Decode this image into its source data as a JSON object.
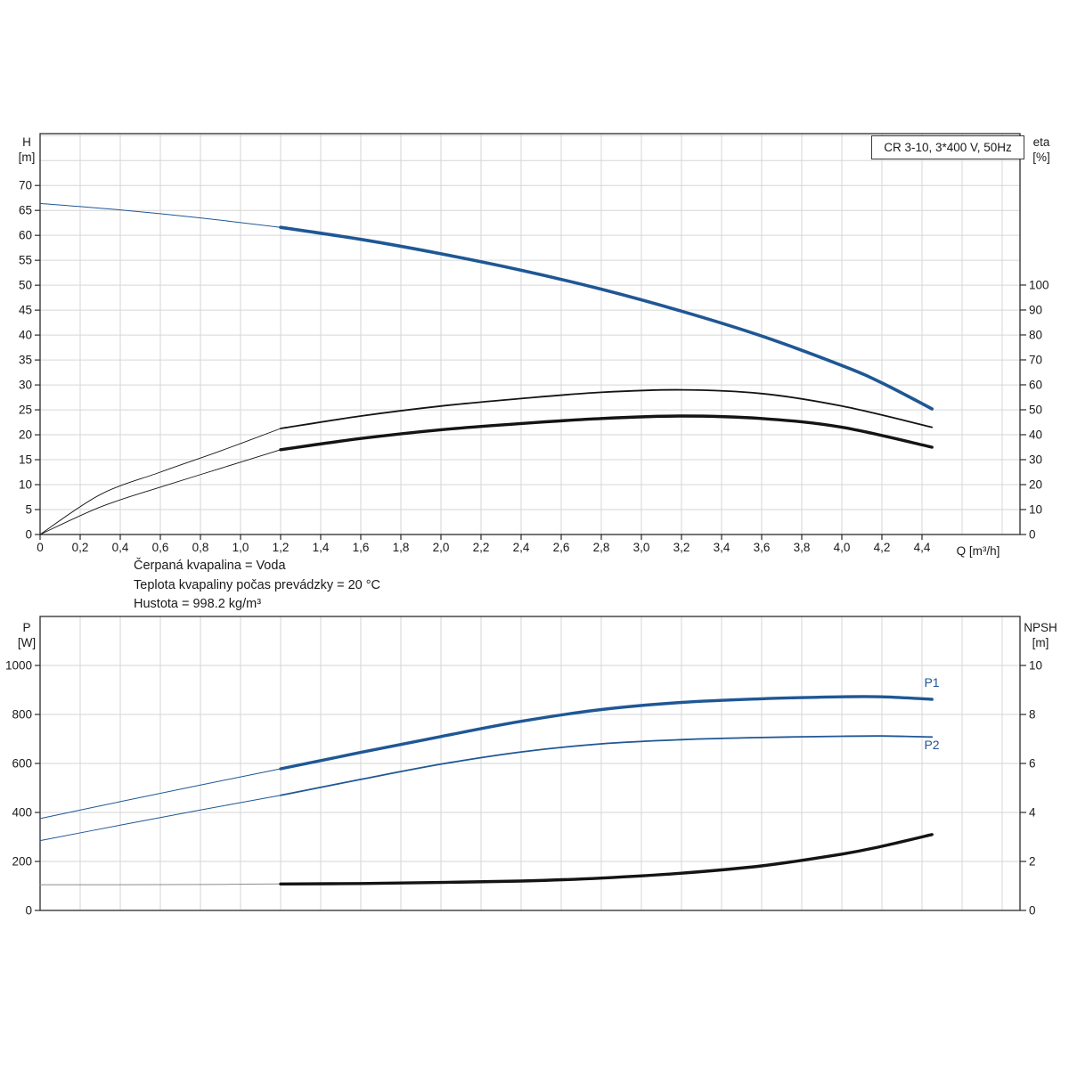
{
  "page": {
    "background": "#ffffff"
  },
  "colors": {
    "curve_blue": "#1f5795",
    "curve_black": "#141414",
    "npsh_thin": "#8c8c8c",
    "grid": "#d6d6d6",
    "axis": "#2b2b2b",
    "text": "#1a1a1a"
  },
  "title_box": {
    "label": "CR 3-10, 3*400 V, 50Hz"
  },
  "notes": {
    "line1": "Čerpaná kvapalina = Voda",
    "line2": "Teplota kvapaliny počas prevádzky = 20 °C",
    "line3": "Hustota = 998.2 kg/m³"
  },
  "chart_data": [
    {
      "type": "line",
      "name": "qh-eta-chart",
      "title": "CR 3-10, 3*400 V, 50Hz",
      "grid": true,
      "x": {
        "label": "Q [m³/h]",
        "range": [
          0,
          4.889
        ],
        "grid_step": 0.2,
        "tick_labels": [
          "0",
          "0,2",
          "0,4",
          "0,6",
          "0,8",
          "1,0",
          "1,2",
          "1,4",
          "1,6",
          "1,8",
          "2,0",
          "2,2",
          "2,4",
          "2,6",
          "2,8",
          "3,0",
          "3,2",
          "3,4",
          "3,6",
          "3,8",
          "4,0",
          "4,2",
          "4,4"
        ]
      },
      "y_left": {
        "label": "H [m]",
        "label_line1": "H",
        "label_line2": "[m]",
        "range": [
          0,
          80.4
        ],
        "grid_step": 5,
        "tick_values": [
          0,
          5,
          10,
          15,
          20,
          25,
          30,
          35,
          40,
          45,
          50,
          55,
          60,
          65,
          70
        ]
      },
      "y_right": {
        "label": "eta [%]",
        "label_line1": "eta",
        "label_line2": "[%]",
        "range": [
          0,
          160.7
        ],
        "tick_values": [
          0,
          10,
          20,
          30,
          40,
          50,
          60,
          70,
          80,
          90,
          100
        ]
      },
      "series": [
        {
          "name": "QH",
          "label": "",
          "axis": "left",
          "color": "#1f5795",
          "split": 1.2,
          "width_thin": 1,
          "width_thick": 3.6,
          "points": [
            [
              0,
              66.4
            ],
            [
              0.4,
              65.1
            ],
            [
              0.8,
              63.5
            ],
            [
              1.2,
              61.6
            ],
            [
              1.6,
              59.2
            ],
            [
              2.0,
              56.3
            ],
            [
              2.4,
              53.0
            ],
            [
              2.8,
              49.2
            ],
            [
              3.2,
              44.8
            ],
            [
              3.6,
              39.8
            ],
            [
              4.0,
              33.9
            ],
            [
              4.2,
              30.4
            ],
            [
              4.45,
              25.2
            ]
          ]
        },
        {
          "name": "eta-upper",
          "label": "",
          "axis": "right",
          "color": "#141414",
          "split": 1.2,
          "width_thin": 0.9,
          "width_thick": 1.8,
          "points": [
            [
              0,
              0
            ],
            [
              0.3,
              16
            ],
            [
              0.6,
              25
            ],
            [
              0.9,
              33.5
            ],
            [
              1.2,
              42.5
            ],
            [
              1.6,
              47.5
            ],
            [
              2.0,
              51.5
            ],
            [
              2.4,
              54.5
            ],
            [
              2.8,
              57.0
            ],
            [
              3.2,
              58.0
            ],
            [
              3.6,
              56.5
            ],
            [
              4.0,
              51.5
            ],
            [
              4.45,
              43.0
            ]
          ]
        },
        {
          "name": "eta-lower",
          "label": "",
          "axis": "right",
          "color": "#141414",
          "split": 1.2,
          "width_thin": 0.9,
          "width_thick": 3.4,
          "points": [
            [
              0,
              0
            ],
            [
              0.3,
              11
            ],
            [
              0.6,
              19
            ],
            [
              0.9,
              26.5
            ],
            [
              1.2,
              34
            ],
            [
              1.6,
              38.5
            ],
            [
              2.0,
              42
            ],
            [
              2.4,
              44.5
            ],
            [
              2.8,
              46.5
            ],
            [
              3.2,
              47.5
            ],
            [
              3.6,
              46.5
            ],
            [
              4.0,
              43
            ],
            [
              4.45,
              35
            ]
          ]
        }
      ]
    },
    {
      "type": "line",
      "name": "power-npsh-chart",
      "title": "",
      "grid": true,
      "x": {
        "label": "",
        "range": [
          0,
          4.889
        ],
        "grid_step": 0.2,
        "tick_labels": []
      },
      "y_left": {
        "label": "P [W]",
        "label_line1": "P",
        "label_line2": "[W]",
        "range": [
          0,
          1200
        ],
        "grid_step": 200,
        "tick_values": [
          0,
          200,
          400,
          600,
          800,
          1000
        ]
      },
      "y_right": {
        "label": "NPSH [m]",
        "label_line1": "NPSH",
        "label_line2": "[m]",
        "range": [
          0,
          12
        ],
        "tick_values": [
          0,
          2,
          4,
          6,
          8,
          10
        ]
      },
      "series": [
        {
          "name": "P1",
          "label": "P1",
          "axis": "left",
          "color": "#1f5795",
          "split": 1.2,
          "width_thin": 1,
          "width_thick": 3.4,
          "points": [
            [
              0,
              375
            ],
            [
              0.4,
              444
            ],
            [
              0.8,
              512
            ],
            [
              1.2,
              578
            ],
            [
              1.6,
              645
            ],
            [
              2.0,
              710
            ],
            [
              2.4,
              772
            ],
            [
              2.8,
              820
            ],
            [
              3.2,
              849
            ],
            [
              3.6,
              864
            ],
            [
              4.0,
              872
            ],
            [
              4.2,
              872
            ],
            [
              4.45,
              862
            ]
          ]
        },
        {
          "name": "P2",
          "label": "P2",
          "axis": "left",
          "color": "#1f5795",
          "split": 1.2,
          "width_thin": 1,
          "width_thick": 1.8,
          "points": [
            [
              0,
              285
            ],
            [
              0.4,
              348
            ],
            [
              0.8,
              410
            ],
            [
              1.2,
              470
            ],
            [
              1.6,
              535
            ],
            [
              2.0,
              597
            ],
            [
              2.4,
              647
            ],
            [
              2.8,
              680
            ],
            [
              3.2,
              697
            ],
            [
              3.6,
              706
            ],
            [
              4.0,
              711
            ],
            [
              4.2,
              712
            ],
            [
              4.45,
              708
            ]
          ]
        },
        {
          "name": "NPSH",
          "label": "",
          "axis": "right",
          "color": "#141414",
          "thin_color": "#8c8c8c",
          "split": 1.2,
          "width_thin": 1,
          "width_thick": 3.4,
          "points": [
            [
              0,
              1.05
            ],
            [
              0.4,
              1.05
            ],
            [
              0.8,
              1.06
            ],
            [
              1.2,
              1.08
            ],
            [
              1.6,
              1.1
            ],
            [
              2.0,
              1.14
            ],
            [
              2.4,
              1.2
            ],
            [
              2.8,
              1.32
            ],
            [
              3.2,
              1.52
            ],
            [
              3.6,
              1.82
            ],
            [
              4.0,
              2.3
            ],
            [
              4.2,
              2.62
            ],
            [
              4.45,
              3.1
            ]
          ]
        }
      ]
    }
  ]
}
